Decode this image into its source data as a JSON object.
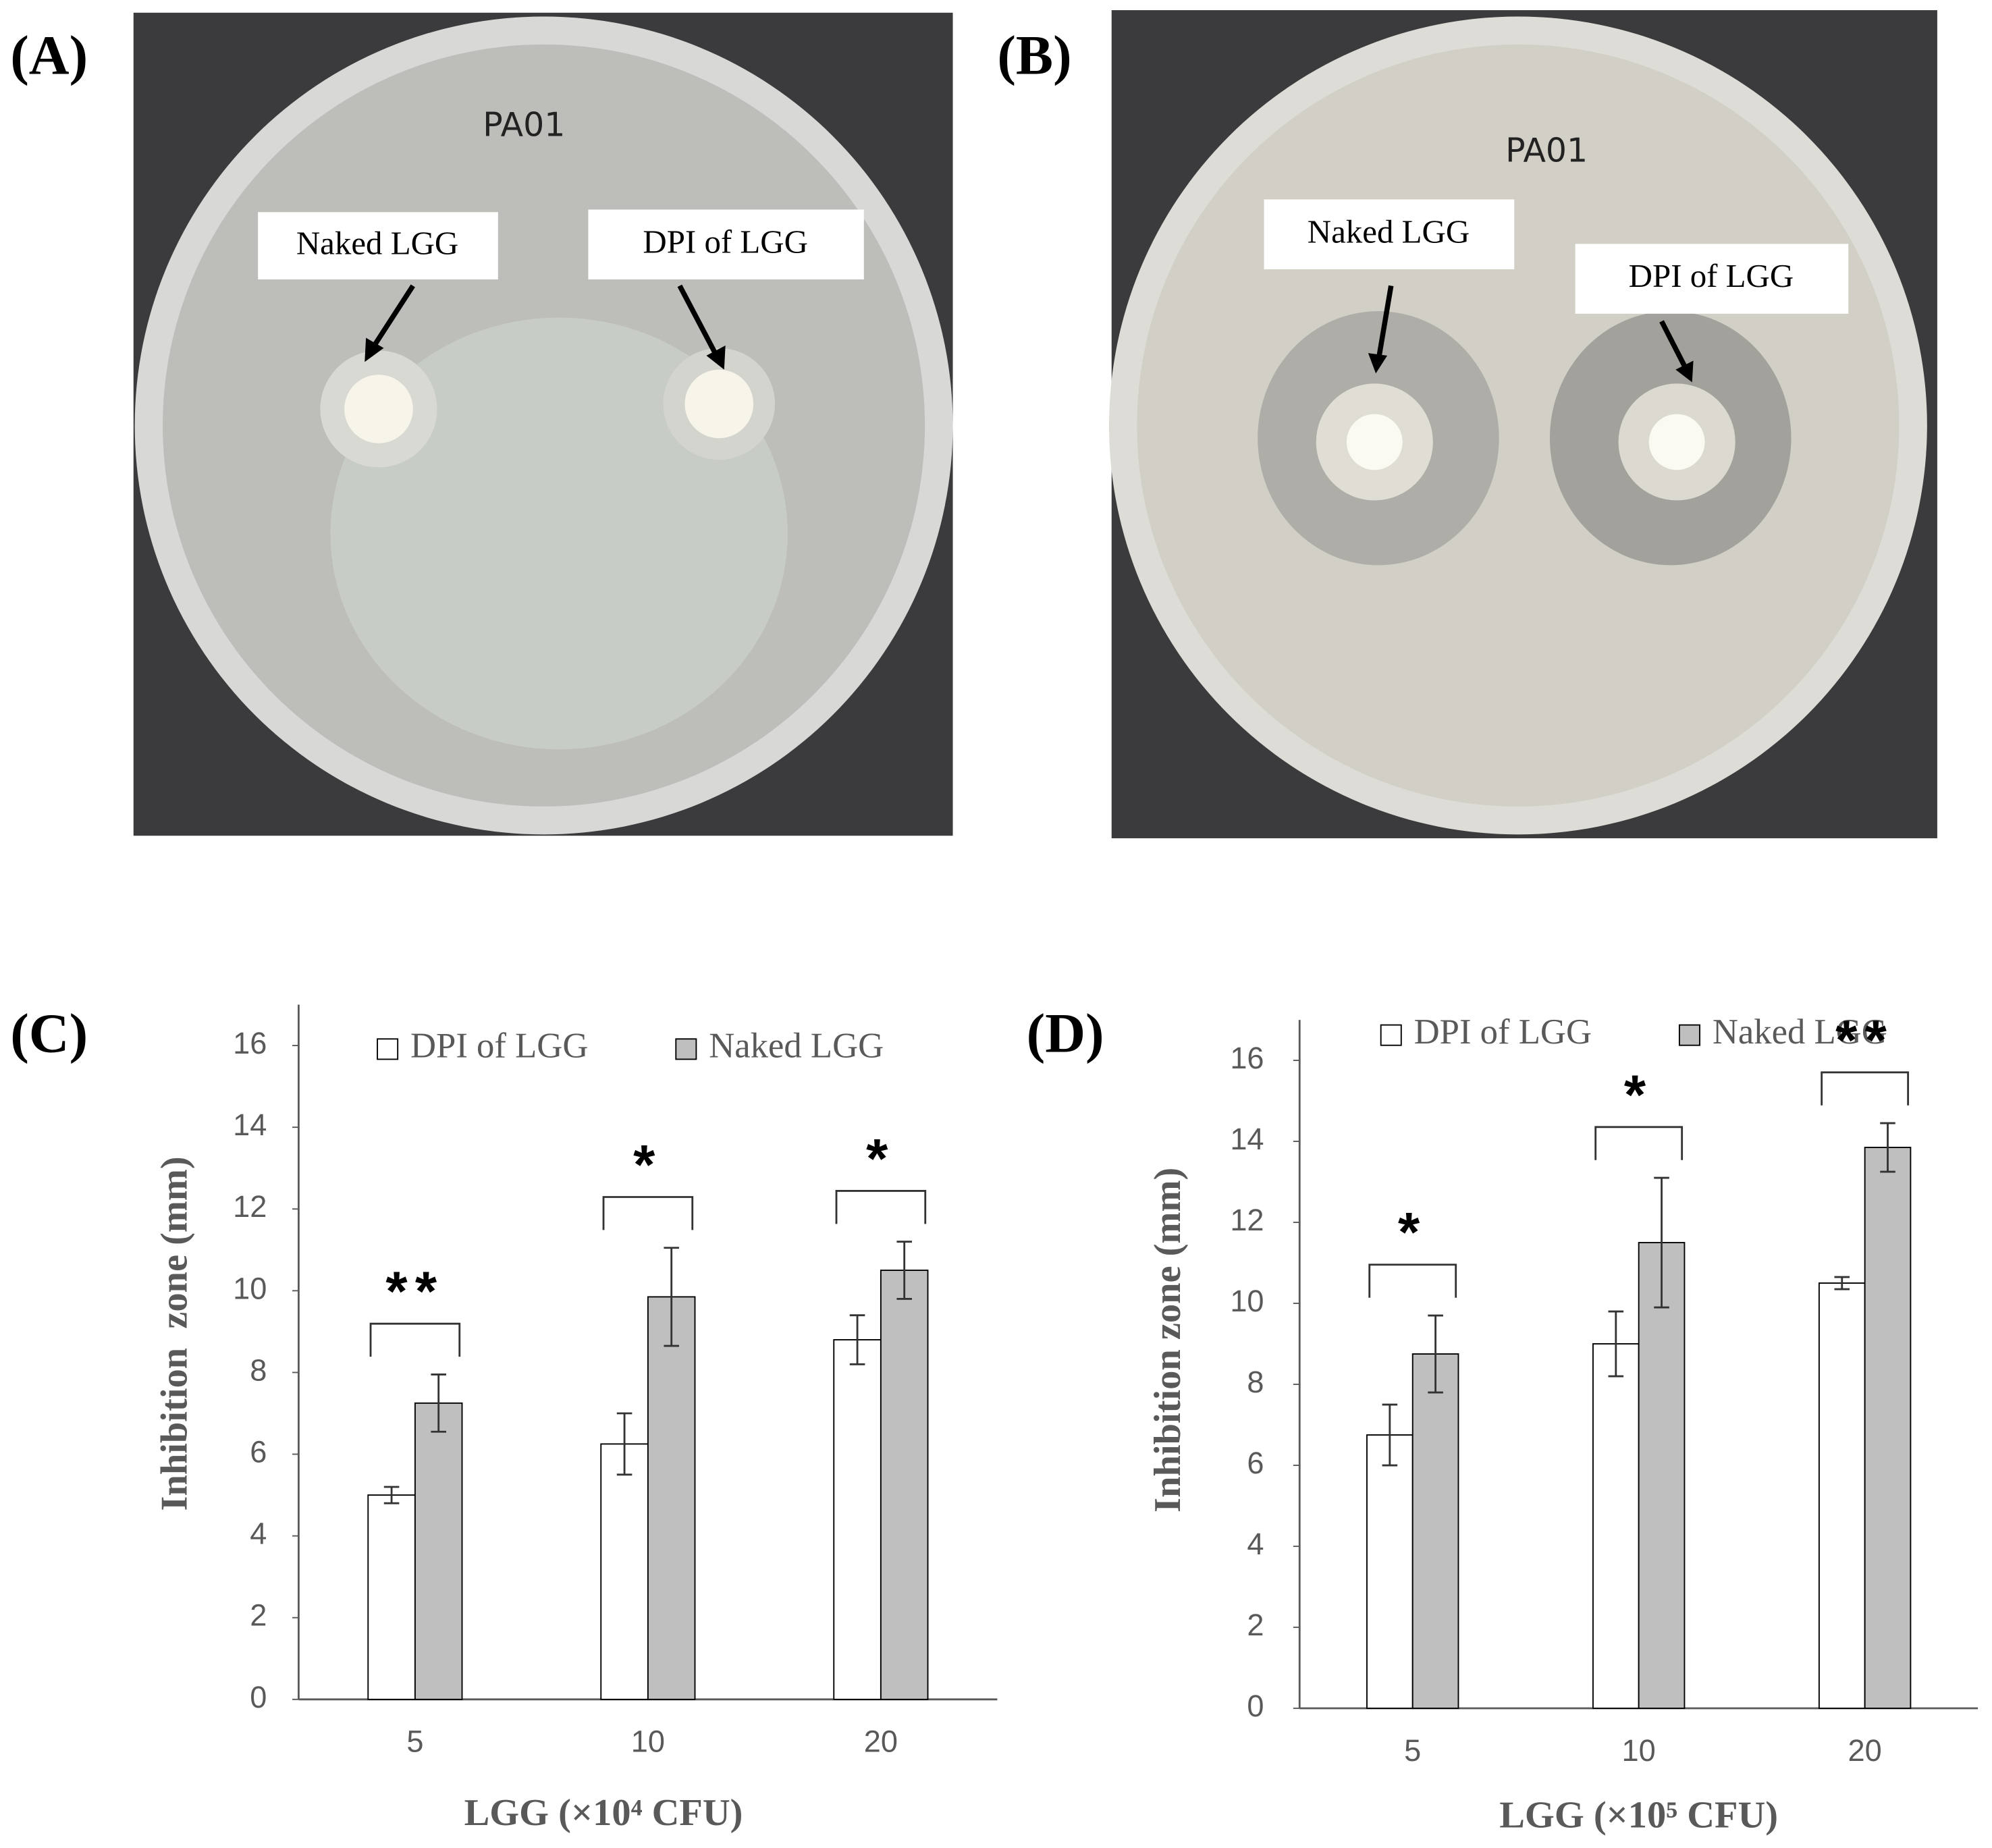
{
  "photos": [
    {
      "panel": "(A)",
      "handwriting": "PA01",
      "annotations": [
        "Naked LGG",
        "DPI of LGG"
      ]
    },
    {
      "panel": "(B)",
      "handwriting": "PA01",
      "annotations": [
        "Naked LGG",
        "DPI of LGG"
      ]
    }
  ],
  "chart_data": [
    {
      "type": "bar",
      "panel": "(C)",
      "x_label": "LGG (×10⁴ CFU)",
      "y_label": "Inhibition  zone (mm)",
      "categories": [
        "5",
        "10",
        "20"
      ],
      "series": [
        {
          "name": "DPI of LGG",
          "color": "#ffffff",
          "values": [
            5.0,
            6.25,
            8.8
          ],
          "errors": [
            0.2,
            0.75,
            0.6
          ]
        },
        {
          "name": "Naked LGG",
          "color": "#bfbfbf",
          "values": [
            7.25,
            9.85,
            10.5
          ],
          "errors": [
            0.7,
            1.2,
            0.7
          ]
        }
      ],
      "significance": [
        "**",
        "*",
        "*"
      ],
      "ylim": [
        0,
        17
      ],
      "yticks": [
        0,
        2,
        4,
        6,
        8,
        10,
        12,
        14,
        16
      ],
      "grid": false
    },
    {
      "type": "bar",
      "panel": "(D)",
      "x_label": "LGG (×10⁵ CFU)",
      "y_label": "Inhibition zone (mm)",
      "categories": [
        "5",
        "10",
        "20"
      ],
      "series": [
        {
          "name": "DPI of LGG",
          "color": "#ffffff",
          "values": [
            6.75,
            9.0,
            10.5
          ],
          "errors": [
            0.75,
            0.8,
            0.15
          ]
        },
        {
          "name": "Naked LGG",
          "color": "#bfbfbf",
          "values": [
            8.75,
            11.5,
            13.85
          ],
          "errors": [
            0.95,
            1.6,
            0.6
          ]
        }
      ],
      "significance": [
        "*",
        "*",
        "**"
      ],
      "ylim": [
        0,
        17
      ],
      "yticks": [
        0,
        2,
        4,
        6,
        8,
        10,
        12,
        14,
        16
      ],
      "grid": false
    }
  ]
}
